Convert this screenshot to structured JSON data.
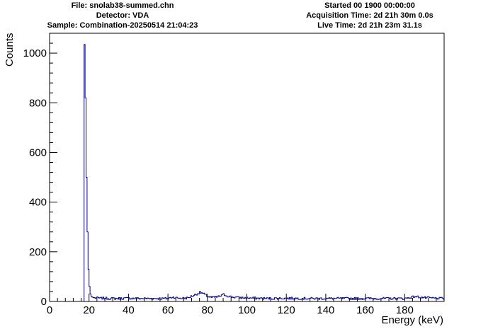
{
  "header": {
    "file": "File: snolab38-summed.chn",
    "detector": "Detector: VDA",
    "sample": "Sample: Combination-20250514 21:04:23",
    "started": "Started 00     1900 00:00:00",
    "acquisition_time": "Acquisition Time: 2d 21h 30m 0.0s",
    "live_time": "Live Time: 2d 21h 23m 31.1s"
  },
  "chart_data": {
    "type": "histogram",
    "title": "",
    "xlabel": "Energy (keV)",
    "ylabel": "Counts",
    "xlim": [
      0,
      200
    ],
    "ylim": [
      0,
      1080
    ],
    "x_ticks": [
      0,
      20,
      40,
      60,
      80,
      100,
      120,
      140,
      160,
      180
    ],
    "y_ticks": [
      0,
      200,
      400,
      600,
      800,
      1000
    ],
    "line_color": "#000080",
    "grid": false,
    "series": [
      {
        "x": [
          17.5,
          18.0,
          18.5,
          19.0,
          19.5,
          20.0,
          20.5,
          21.0,
          22.0,
          24.0,
          26.0,
          28.0,
          30.0,
          35.0,
          40.0,
          45.0,
          50.0,
          55.0,
          60.0,
          62.0,
          65.0,
          70.0,
          72.0,
          74.0,
          76.0,
          77.0,
          78.0,
          80.0,
          82.0,
          85.0,
          87.0,
          88.0,
          90.0,
          92.0,
          95.0,
          100.0,
          105.0,
          110.0,
          120.0,
          130.0,
          140.0,
          150.0,
          160.0,
          170.0,
          180.0,
          185.0,
          190.0,
          195.0,
          199.0
        ],
        "y": [
          1035,
          820,
          500,
          280,
          130,
          60,
          30,
          20,
          15,
          14,
          13,
          13,
          12,
          12,
          13,
          12,
          12,
          12,
          12,
          18,
          13,
          14,
          22,
          28,
          36,
          34,
          30,
          20,
          16,
          18,
          24,
          28,
          22,
          18,
          16,
          14,
          13,
          12,
          13,
          12,
          12,
          12,
          12,
          12,
          12,
          20,
          15,
          13,
          12
        ]
      }
    ]
  }
}
